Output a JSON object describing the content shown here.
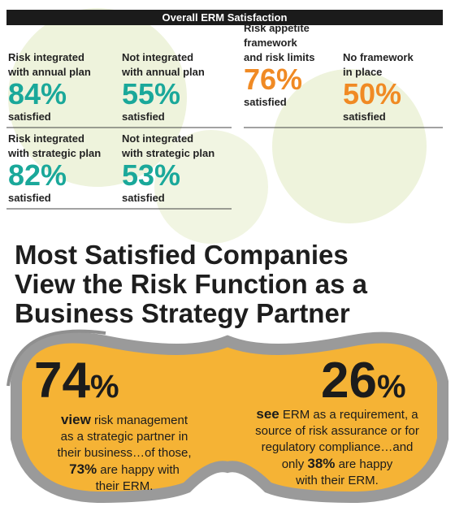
{
  "header": {
    "title": "Overall ERM Satisfaction"
  },
  "stats": [
    {
      "label": [
        "Risk integrated",
        "with annual plan"
      ],
      "value": "84%",
      "note": "satisfied",
      "color": "#1aa89a"
    },
    {
      "label": [
        "Not integrated",
        "with annual plan"
      ],
      "value": "55%",
      "note": "satisfied",
      "color": "#1aa89a"
    },
    {
      "label": [
        "Risk appetite",
        "framework",
        "and risk limits"
      ],
      "value": "76%",
      "note": "satisfied",
      "color": "#f08a24"
    },
    {
      "label": [
        "No framework",
        "in place"
      ],
      "value": "50%",
      "note": "satisfied",
      "color": "#f08a24"
    },
    {
      "label": [
        "Risk integrated",
        "with strategic plan"
      ],
      "value": "82%",
      "note": "satisfied",
      "color": "#1aa89a"
    },
    {
      "label": [
        "Not integrated",
        "with strategic plan"
      ],
      "value": "53%",
      "note": "satisfied",
      "color": "#1aa89a"
    }
  ],
  "headline": [
    "Most Satisfied Companies",
    "View the Risk Function as a",
    "Business Strategy Partner"
  ],
  "callouts": [
    {
      "number": "74",
      "unit": "%",
      "lines": [
        [
          {
            "text": "view",
            "bold": true
          },
          {
            "text": " risk management"
          }
        ],
        [
          {
            "text": "as a strategic partner in"
          }
        ],
        [
          {
            "text": "their business…of those,"
          }
        ],
        [
          {
            "text": "73%",
            "bold": true
          },
          {
            "text": " are happy with"
          }
        ],
        [
          {
            "text": "their ERM."
          }
        ]
      ]
    },
    {
      "number": "26",
      "unit": "%",
      "lines": [
        [
          {
            "text": "see",
            "bold": true
          },
          {
            "text": " ERM as a requirement, a"
          }
        ],
        [
          {
            "text": "source of risk assurance or for"
          }
        ],
        [
          {
            "text": "regulatory compliance…and"
          }
        ],
        [
          {
            "text": "only "
          },
          {
            "text": "38%",
            "bold": true
          },
          {
            "text": " are happy"
          }
        ],
        [
          {
            "text": "with their ERM."
          }
        ]
      ]
    }
  ]
}
